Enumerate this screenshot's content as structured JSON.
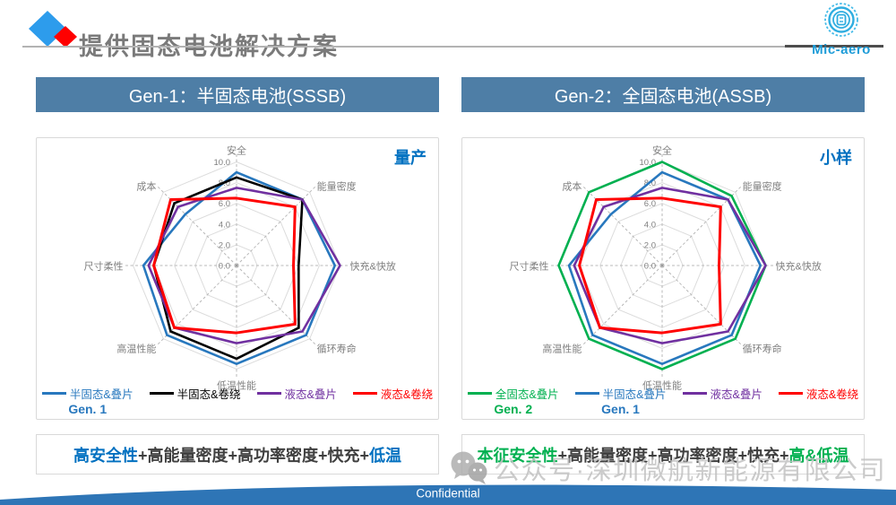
{
  "slide": {
    "title": "提供固态电池解决方案",
    "brand": "Mic-aero",
    "footer": "Confidential",
    "watermark": "公众号·深圳微航新能源有限公司",
    "accent_colors": {
      "title_gray": "#7a7a7a",
      "brand_blue": "#1E9CD8",
      "header_bar_blue": "#4E7EA6",
      "stage_label_blue": "#0070C0",
      "footer_band_blue": "#2E75B6",
      "summary_blue": "#0070C0",
      "summary_green": "#00B050",
      "diamond_blue": "#2D9CEC",
      "diamond_red": "#FF0000"
    }
  },
  "panels": [
    {
      "header": "Gen-1：半固态电池(SSSB)",
      "stage_label": "量产",
      "summary": [
        {
          "text": "高安全性",
          "color": "#0070C0"
        },
        {
          "text": "+高能量密度+高功率密度+快充+",
          "color": "#3F3F3F"
        },
        {
          "text": "低温",
          "color": "#0070C0"
        }
      ]
    },
    {
      "header": "Gen-2：全固态电池(ASSB)",
      "stage_label": "小样",
      "summary": [
        {
          "text": "本征安全性",
          "color": "#00B050"
        },
        {
          "text": "+高能量密度+高功率密度+快充+",
          "color": "#3F3F3F"
        },
        {
          "text": "高&低温",
          "color": "#00B050"
        }
      ]
    }
  ],
  "chart_data": [
    {
      "type": "radar",
      "title": "Gen-1：半固态电池(SSSB) 量产",
      "categories": [
        "安全",
        "能量密度",
        "快充&快放",
        "循环寿命",
        "低温性能",
        "高温性能",
        "尺寸柔性",
        "成本"
      ],
      "rmin": 0,
      "rmax": 10,
      "tick_step": 2,
      "tick_labels": [
        "0.0",
        "2.0",
        "4.0",
        "6.0",
        "8.0",
        "10.0"
      ],
      "grid": "concentric octagon rings with dashed radial axes",
      "legend_position": "bottom",
      "series": [
        {
          "name": "半固态&叠片",
          "color": "#2878BE",
          "gen_label": "Gen. 1",
          "gen_color": "#2878BE",
          "values": [
            9,
            9,
            9.5,
            9.5,
            9.5,
            9.5,
            9,
            7
          ]
        },
        {
          "name": "半固态&卷绕",
          "color": "#000000",
          "gen_label": "",
          "gen_color": "",
          "values": [
            8.5,
            9,
            6,
            8.5,
            9,
            9,
            8,
            8.5
          ]
        },
        {
          "name": "液态&叠片",
          "color": "#7030A0",
          "gen_label": "",
          "gen_color": "",
          "values": [
            7.5,
            9,
            10,
            9,
            7.5,
            8.5,
            8.5,
            8
          ]
        },
        {
          "name": "液态&卷绕",
          "color": "#FF0000",
          "gen_label": "",
          "gen_color": "",
          "values": [
            6.5,
            8,
            5.5,
            8,
            6.5,
            8.5,
            8,
            9
          ]
        }
      ]
    },
    {
      "type": "radar",
      "title": "Gen-2：全固态电池(ASSB) 小样",
      "categories": [
        "安全",
        "能量密度",
        "快充&快放",
        "循环寿命",
        "低温性能",
        "高温性能",
        "尺寸柔性",
        "成本"
      ],
      "rmin": 0,
      "rmax": 10,
      "tick_step": 2,
      "tick_labels": [
        "0.0",
        "2.0",
        "4.0",
        "6.0",
        "8.0",
        "10.0"
      ],
      "grid": "concentric octagon rings with dashed radial axes",
      "legend_position": "bottom",
      "series": [
        {
          "name": "全固态&叠片",
          "color": "#00B050",
          "gen_label": "Gen. 2",
          "gen_color": "#00B050",
          "values": [
            10,
            9.5,
            10,
            10,
            10,
            10,
            10,
            10
          ]
        },
        {
          "name": "半固态&叠片",
          "color": "#2878BE",
          "gen_label": "Gen. 1",
          "gen_color": "#2878BE",
          "values": [
            9,
            9,
            9.5,
            9.5,
            9.5,
            9.5,
            9,
            7
          ]
        },
        {
          "name": "液态&叠片",
          "color": "#7030A0",
          "gen_label": "",
          "gen_color": "",
          "values": [
            7.5,
            9,
            10,
            9,
            7.5,
            8.5,
            8.5,
            8
          ]
        },
        {
          "name": "液态&卷绕",
          "color": "#FF0000",
          "gen_label": "",
          "gen_color": "",
          "values": [
            6.5,
            8,
            5.5,
            8,
            6.5,
            8.5,
            8,
            9
          ]
        }
      ]
    }
  ]
}
